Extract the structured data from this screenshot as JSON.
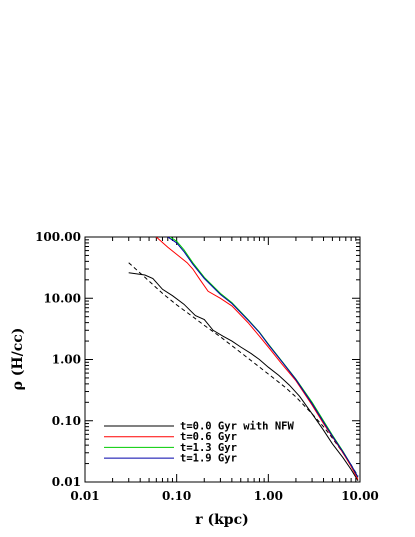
{
  "chart_data": {
    "type": "line",
    "xlabel": "r (kpc)",
    "ylabel": "ρ (H/cc)",
    "xscale": "log",
    "yscale": "log",
    "xlim": [
      0.01,
      10.0
    ],
    "ylim": [
      0.01,
      100.0
    ],
    "xticks": [
      0.01,
      0.1,
      1.0,
      10.0
    ],
    "xtick_labels": [
      "0.01",
      "0.10",
      "1.00",
      "10.00"
    ],
    "yticks": [
      0.01,
      0.1,
      1.0,
      10.0,
      100.0
    ],
    "ytick_labels": [
      "0.01",
      "0.10",
      "1.00",
      "10.00",
      "100.00"
    ],
    "legend_position": "bottom-left",
    "series": [
      {
        "name": "t=0.0 Gyr with NFW",
        "color": "#000000",
        "x": [
          0.03,
          0.045,
          0.055,
          0.07,
          0.09,
          0.12,
          0.16,
          0.2,
          0.25,
          0.32,
          0.4,
          0.5,
          0.65,
          0.8,
          1.0,
          1.3,
          1.7,
          2.2,
          3.0,
          4.0,
          5.0,
          6.5,
          8.0,
          9.5
        ],
        "y": [
          26,
          24,
          21,
          14,
          11,
          8.0,
          5.2,
          4.5,
          3.0,
          2.4,
          2.0,
          1.6,
          1.25,
          1.0,
          0.75,
          0.55,
          0.38,
          0.25,
          0.13,
          0.07,
          0.042,
          0.025,
          0.016,
          0.0105
        ]
      },
      {
        "name": "NFW",
        "color": "#000000",
        "dashed": true,
        "x": [
          0.03,
          0.045,
          0.07,
          0.1,
          0.15,
          0.2,
          0.3,
          0.5,
          0.7,
          1.0,
          1.5,
          2.0,
          3.0,
          4.0,
          5.0,
          6.5,
          8.0,
          9.5
        ],
        "y": [
          38,
          22,
          12,
          7.8,
          5.0,
          3.6,
          2.35,
          1.3,
          0.88,
          0.58,
          0.36,
          0.245,
          0.13,
          0.08,
          0.052,
          0.03,
          0.019,
          0.0125
        ]
      },
      {
        "name": "t=0.6 Gyr",
        "color": "#ff0000",
        "x": [
          0.06,
          0.08,
          0.1,
          0.13,
          0.15,
          0.18,
          0.22,
          0.3,
          0.4,
          0.6,
          0.8,
          1.0,
          1.4,
          2.0,
          3.0,
          4.0,
          5.0,
          6.5,
          8.0,
          9.5
        ],
        "y": [
          100,
          68,
          52,
          38,
          30,
          20,
          13,
          10,
          7.5,
          4.0,
          2.4,
          1.6,
          0.85,
          0.45,
          0.18,
          0.09,
          0.055,
          0.03,
          0.018,
          0.011
        ]
      },
      {
        "name": "t=1.3 Gyr",
        "color": "#00cc00",
        "x": [
          0.085,
          0.1,
          0.12,
          0.15,
          0.2,
          0.3,
          0.4,
          0.6,
          0.8,
          1.0,
          1.4,
          2.0,
          3.0,
          4.0,
          5.0,
          6.5,
          8.0,
          9.5
        ],
        "y": [
          100,
          85,
          62,
          38,
          22,
          12,
          8.5,
          4.5,
          2.8,
          1.8,
          0.95,
          0.48,
          0.2,
          0.1,
          0.058,
          0.032,
          0.019,
          0.012
        ]
      },
      {
        "name": "t=1.9 Gyr",
        "color": "#0000aa",
        "x": [
          0.08,
          0.1,
          0.12,
          0.15,
          0.2,
          0.3,
          0.4,
          0.6,
          0.8,
          1.0,
          1.4,
          2.0,
          3.0,
          4.0,
          5.0,
          6.5,
          8.0,
          9.5
        ],
        "y": [
          100,
          80,
          58,
          36,
          21,
          11.5,
          8.2,
          4.4,
          2.75,
          1.75,
          0.93,
          0.47,
          0.19,
          0.095,
          0.056,
          0.031,
          0.019,
          0.012
        ]
      }
    ]
  }
}
